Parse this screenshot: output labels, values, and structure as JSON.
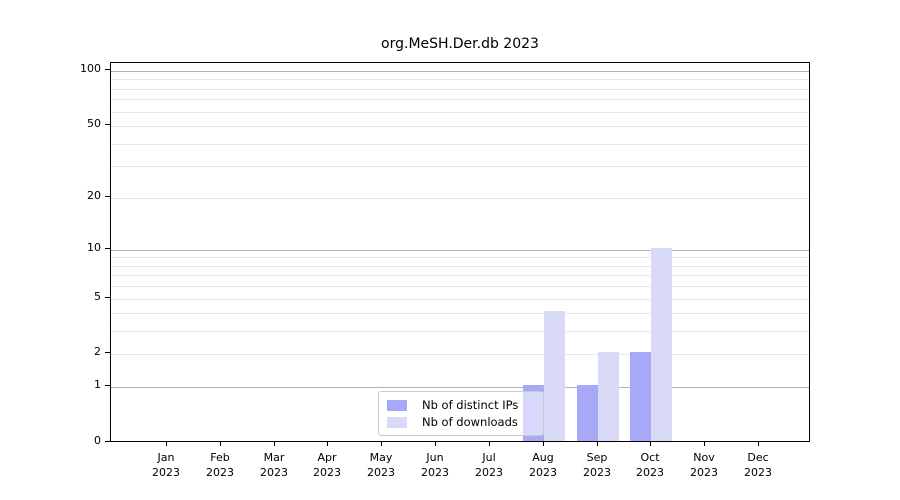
{
  "chart_data": {
    "type": "bar",
    "title": "org.MeSH.Der.db 2023",
    "categories": [
      "Jan",
      "Feb",
      "Mar",
      "Apr",
      "May",
      "Jun",
      "Jul",
      "Aug",
      "Sep",
      "Oct",
      "Nov",
      "Dec"
    ],
    "category_year": "2023",
    "series": [
      {
        "name": "Nb of distinct IPs",
        "color": "#a8a8f8",
        "values": [
          0,
          0,
          0,
          0,
          0,
          0,
          0,
          1,
          1,
          2,
          0,
          0
        ]
      },
      {
        "name": "Nb of downloads",
        "color": "#d9d9f8",
        "values": [
          0,
          0,
          0,
          0,
          0,
          0,
          0,
          4,
          2,
          10,
          0,
          0
        ]
      }
    ],
    "y_axis": {
      "scale": "log1p",
      "ticks": [
        0,
        1,
        2,
        5,
        10,
        20,
        50,
        100
      ],
      "minor_gridlines": [
        2,
        3,
        4,
        5,
        6,
        7,
        8,
        9,
        20,
        30,
        40,
        50,
        60,
        70,
        80,
        90
      ],
      "major_gridlines": [
        1,
        10,
        100
      ],
      "max_value": 100
    },
    "xlabel": "",
    "ylabel": "",
    "grid": true,
    "legend_position": "bottom-center"
  },
  "colors": {
    "grid_minor": "#e9e9e9",
    "grid_major": "#b2b2b2",
    "spine": "#000000",
    "text": "#000000",
    "legend_border": "#c9c9c9"
  }
}
